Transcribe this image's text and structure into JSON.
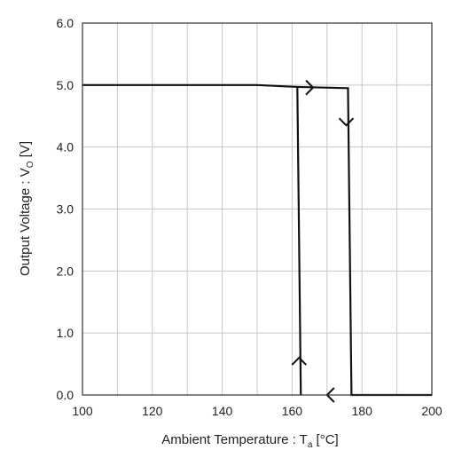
{
  "chart_data": {
    "type": "line",
    "xlabel": {
      "main": "Ambient Temperature : T",
      "sub": "a",
      "unit": " [°C]"
    },
    "ylabel": {
      "main": "Output Voltage : V",
      "sub": "O",
      "unit": " [V]"
    },
    "xlim": [
      100,
      200
    ],
    "ylim": [
      0.0,
      6.0
    ],
    "xticks": [
      "100",
      "120",
      "140",
      "160",
      "180",
      "200"
    ],
    "yticks": [
      "0.0",
      "1.0",
      "2.0",
      "3.0",
      "4.0",
      "5.0",
      "6.0"
    ],
    "grid": true,
    "series": [
      {
        "x": [
          100,
          150,
          161.5,
          176,
          177,
          200
        ],
        "y": [
          5.0,
          5.0,
          4.97,
          4.95,
          0.0,
          0.0
        ]
      },
      {
        "x": [
          161.5,
          162.5
        ],
        "y": [
          4.97,
          0.0
        ]
      }
    ],
    "arrows": [
      {
        "x": 166,
        "y": 4.96,
        "direction": "right"
      },
      {
        "x": 175.5,
        "y": 4.35,
        "direction": "down"
      },
      {
        "x": 170,
        "y": 0.0,
        "direction": "left"
      },
      {
        "x": 162,
        "y": 0.6,
        "direction": "up"
      }
    ],
    "colors": {
      "line": "#111111",
      "grid": "#c8c8c8",
      "frame": "#333333"
    }
  }
}
